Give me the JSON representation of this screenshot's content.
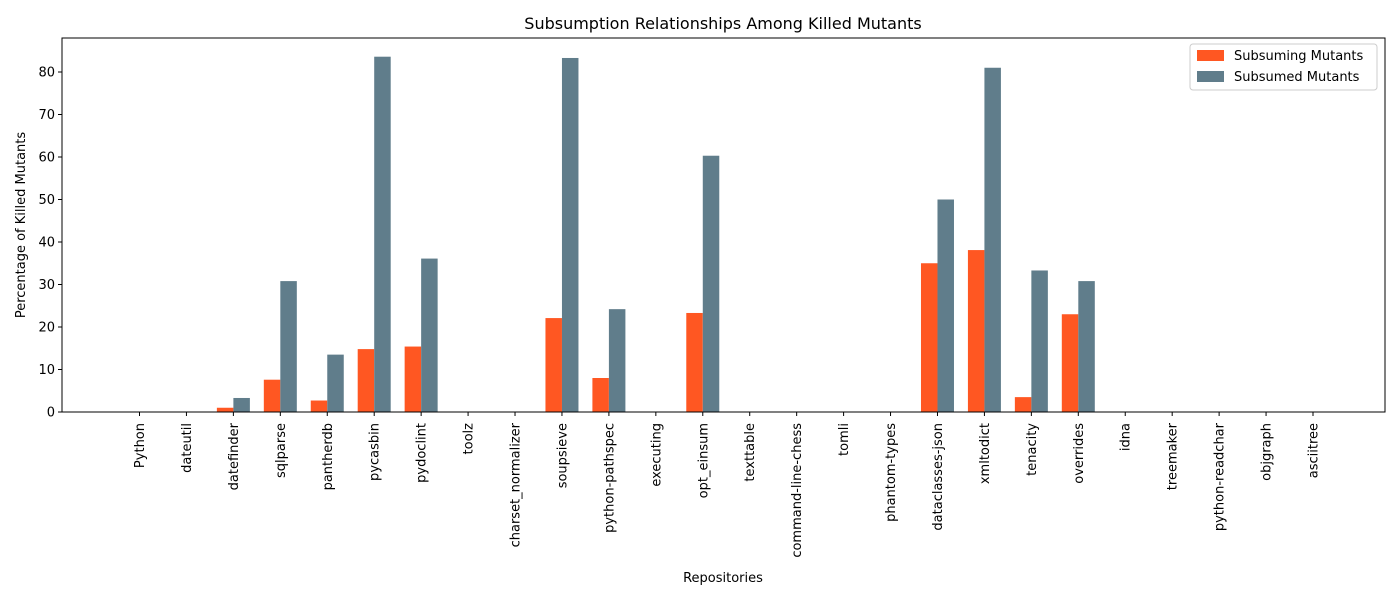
{
  "chart_data": {
    "type": "bar",
    "title": "Subsumption Relationships Among Killed Mutants",
    "xlabel": "Repositories",
    "ylabel": "Percentage of Killed Mutants",
    "ylim": [
      0,
      88
    ],
    "yticks": [
      0,
      10,
      20,
      30,
      40,
      50,
      60,
      70,
      80
    ],
    "grid": false,
    "legend_position": "top-right",
    "categories": [
      "Python",
      "dateutil",
      "datefinder",
      "sqlparse",
      "pantherdb",
      "pycasbin",
      "pydoclint",
      "toolz",
      "charset_normalizer",
      "soupsieve",
      "python-pathspec",
      "executing",
      "opt_einsum",
      "texttable",
      "command-line-chess",
      "tomli",
      "phantom-types",
      "dataclasses-json",
      "xmltodict",
      "tenacity",
      "overrides",
      "idna",
      "treemaker",
      "python-readchar",
      "objgraph",
      "asciitree"
    ],
    "series": [
      {
        "name": "Subsuming Mutants",
        "color": "#ff5722",
        "values": [
          0,
          0,
          1.0,
          7.6,
          2.7,
          14.8,
          15.4,
          0,
          0,
          22.1,
          8.0,
          0,
          23.3,
          0,
          0,
          0,
          0,
          35.0,
          38.1,
          3.5,
          23.0,
          0,
          0,
          0,
          0,
          0
        ]
      },
      {
        "name": "Subsumed Mutants",
        "color": "#607d8b",
        "values": [
          0,
          0,
          3.3,
          30.8,
          13.5,
          83.6,
          36.1,
          0,
          0,
          83.3,
          24.2,
          0,
          60.3,
          0,
          0,
          0,
          0,
          50.0,
          81.0,
          33.3,
          30.8,
          0,
          0,
          0,
          0,
          0
        ]
      }
    ]
  }
}
